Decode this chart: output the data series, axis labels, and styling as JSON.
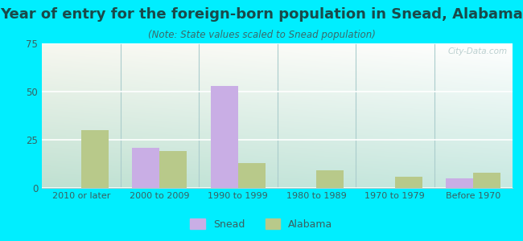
{
  "title": "Year of entry for the foreign-born population in Snead, Alabama",
  "subtitle": "(Note: State values scaled to Snead population)",
  "categories": [
    "2010 or later",
    "2000 to 2009",
    "1990 to 1999",
    "1980 to 1989",
    "1970 to 1979",
    "Before 1970"
  ],
  "snead_values": [
    0,
    21,
    53,
    0,
    0,
    5
  ],
  "alabama_values": [
    30,
    19,
    13,
    9,
    6,
    8
  ],
  "snead_color": "#c9aee5",
  "alabama_color": "#b8c98a",
  "background_outer": "#00eeff",
  "background_inner_topleft": "#c8e8d8",
  "background_inner_topright": "#e8f5f0",
  "background_inner_bottom": "#d8eed8",
  "ylim": [
    0,
    75
  ],
  "yticks": [
    0,
    25,
    50,
    75
  ],
  "bar_width": 0.35,
  "title_fontsize": 13,
  "subtitle_fontsize": 8.5,
  "title_color": "#1a4a4a",
  "subtitle_color": "#3a6a6a",
  "tick_color": "#3a6060",
  "grid_color": "#ffffff",
  "divider_color": "#aacccc",
  "watermark_color": "#b0c8c8"
}
